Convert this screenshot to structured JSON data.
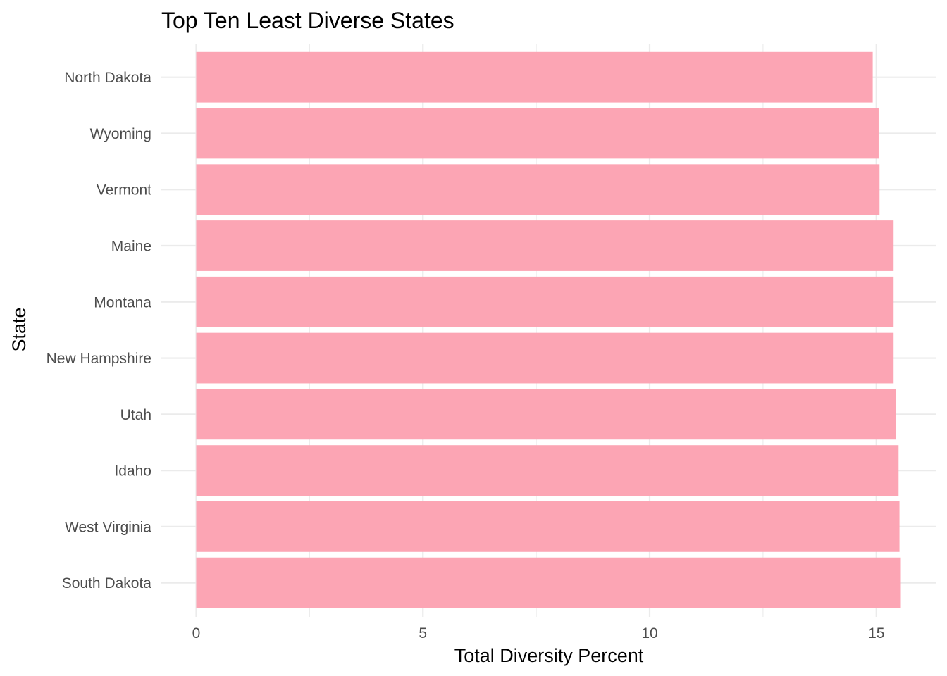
{
  "chart_data": {
    "type": "bar",
    "orientation": "horizontal",
    "title": "Top Ten Least Diverse States",
    "xlabel": "Total Diversity Percent",
    "ylabel": "State",
    "categories": [
      "North Dakota",
      "Wyoming",
      "Vermont",
      "Maine",
      "Montana",
      "New Hampshire",
      "Utah",
      "Idaho",
      "West Virginia",
      "South Dakota"
    ],
    "values": [
      14.92,
      15.05,
      15.07,
      15.38,
      15.38,
      15.38,
      15.43,
      15.49,
      15.51,
      15.54
    ],
    "xlim": [
      0,
      16.3
    ],
    "xticks": [
      0,
      5,
      10,
      15
    ],
    "xtick_labels": [
      "0",
      "5",
      "10",
      "15"
    ],
    "grid": true,
    "colors": {
      "bar": "#FCA5B4",
      "grid": "#EBEBEB",
      "tick_text": "#4D4D4D",
      "title_text": "#000000"
    }
  }
}
